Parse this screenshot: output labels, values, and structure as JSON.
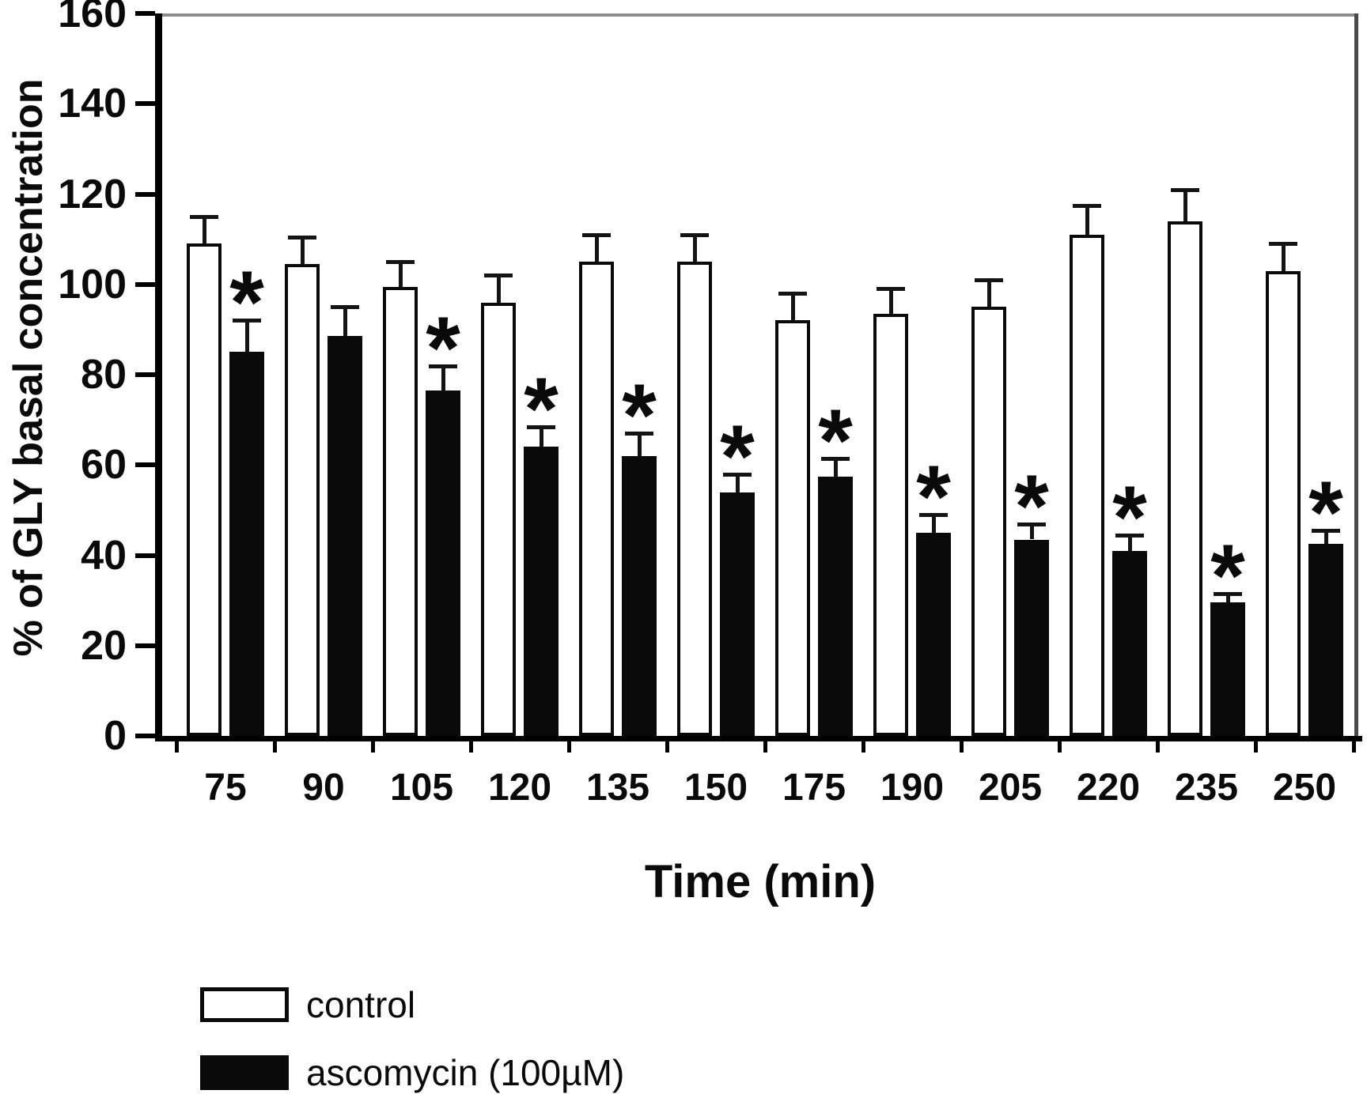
{
  "chart_data": {
    "type": "bar",
    "title": "",
    "xlabel": "Time (min)",
    "ylabel": "% of GLY basal concentration",
    "ylim": [
      0,
      160
    ],
    "yticks": [
      0,
      20,
      40,
      60,
      80,
      100,
      120,
      140,
      160
    ],
    "grid": false,
    "legend_position": "bottom-left",
    "categories": [
      "75",
      "90",
      "105",
      "120",
      "135",
      "150",
      "175",
      "190",
      "205",
      "220",
      "235",
      "250"
    ],
    "series": [
      {
        "name": "control",
        "fill": "#ffffff",
        "values": [
          109,
          104.5,
          99.5,
          96,
          105,
          105,
          92,
          93.5,
          95,
          111,
          114,
          103
        ],
        "errors": [
          6,
          6,
          5.5,
          6,
          6,
          6,
          6,
          5.5,
          6,
          6.5,
          7,
          6
        ]
      },
      {
        "name": "ascomycin (100µM)",
        "fill": "#000000",
        "values": [
          85,
          88.5,
          76.5,
          64,
          62,
          54,
          57.5,
          45,
          43.5,
          41,
          29.5,
          42.5
        ],
        "errors": [
          7,
          6.5,
          5.5,
          4.5,
          5,
          4,
          4,
          4,
          3.5,
          3.5,
          2,
          3
        ]
      }
    ],
    "significance": {
      "symbol": "*",
      "on_series": "ascomycin (100µM)",
      "flags": [
        true,
        false,
        true,
        true,
        true,
        true,
        true,
        true,
        true,
        true,
        true,
        true
      ]
    },
    "legend": [
      {
        "label": "control",
        "swatch": "white"
      },
      {
        "label": "ascomycin (100µM)",
        "swatch": "black"
      }
    ],
    "colors": {
      "bar_outline": "#0a0a0a",
      "bar_fill_control": "#ffffff",
      "bar_fill_ascomycin": "#000000",
      "axis": "#000000",
      "frame": "#8e8e8e",
      "background": "#ffffff"
    }
  }
}
